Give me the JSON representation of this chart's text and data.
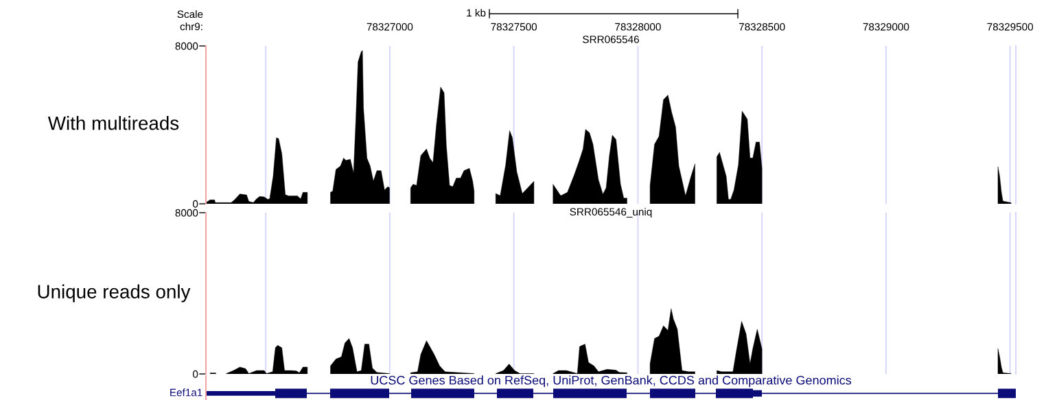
{
  "chart_data": [
    {
      "type": "area",
      "title": "SRR065546",
      "ylabel": "With multireads",
      "annotations": [
        "Scale",
        "chr9:",
        "1 kb"
      ],
      "xlim": [
        78326259,
        78329523
      ],
      "xticks": [
        {
          "value": 78326500,
          "label": null
        },
        78327000,
        78327500,
        78328000,
        78328500,
        78329000,
        78329500
      ],
      "ylim": [
        0,
        8000
      ],
      "yticks": [
        0,
        8000
      ],
      "grid": "x",
      "series": [
        {
          "color": "#000000",
          "x": [
            78326259,
            78326276,
            78326294,
            78326297,
            78326361,
            78326374,
            78326396,
            78326423,
            78326432,
            78326450,
            78326463,
            78326476,
            78326494,
            78326508,
            78326516,
            78326530,
            78326543,
            78326552,
            78326565,
            78326579,
            78326592,
            78326628,
            78326641,
            78326650,
            78326668,
            78326714,
            78326761,
            78326770,
            78326783,
            78326801,
            78326814,
            78326823,
            78326841,
            78326854,
            78326863,
            78326872,
            78326885,
            78326890,
            78326894,
            78326908,
            78326921,
            78326934,
            78326948,
            78326965,
            78326979,
            78326992,
            78326999,
            78327040,
            78327084,
            78327094,
            78327108,
            78327125,
            78327148,
            78327161,
            78327174,
            78327188,
            78327205,
            78327219,
            78327228,
            78327241,
            78327254,
            78327268,
            78327285,
            78327299,
            78327321,
            78327334,
            78327340,
            78327380,
            78327427,
            78327445,
            78327467,
            78327483,
            78327494,
            78327512,
            78327534,
            78327556,
            78327581,
            78327620,
            78327658,
            78327689,
            78327716,
            78327743,
            78327761,
            78327779,
            78327789,
            78327805,
            78327819,
            78327841,
            78327859,
            78327872,
            78327885,
            78327897,
            78327912,
            78327930,
            78327943,
            78327956,
            78328000,
            78328049,
            78328067,
            78328085,
            78328103,
            78328121,
            78328136,
            78328152,
            78328165,
            78328192,
            78328214,
            78328230,
            78328270,
            78328318,
            78328329,
            78328356,
            78328365,
            78328374,
            78328387,
            78328405,
            78328420,
            78328441,
            78328452,
            78328463,
            78328476,
            78328490,
            78328500,
            78329000,
            78329451,
            78329458,
            78329465,
            78329471,
            78329504
          ],
          "values": [
            60,
            200,
            200,
            60,
            60,
            200,
            500,
            450,
            120,
            60,
            250,
            370,
            350,
            230,
            250,
            1400,
            3350,
            3300,
            2550,
            460,
            400,
            400,
            250,
            580,
            580,
            null,
            580,
            640,
            1740,
            1910,
            2320,
            2200,
            2260,
            1570,
            4180,
            7190,
            7710,
            7770,
            4870,
            2320,
            1910,
            1160,
            1680,
            1680,
            700,
            870,
            810,
            null,
            810,
            990,
            930,
            2440,
            2780,
            2320,
            2090,
            4000,
            5920,
            5630,
            2960,
            930,
            870,
            1300,
            1300,
            1680,
            1800,
            1160,
            640,
            null,
            520,
            410,
            1970,
            3710,
            3360,
            1620,
            520,
            810,
            1140,
            null,
            990,
            410,
            580,
            1450,
            2090,
            2780,
            3770,
            3600,
            3020,
            1220,
            490,
            810,
            2440,
            3480,
            3250,
            990,
            290,
            290,
            null,
            930,
            3020,
            3420,
            5280,
            5510,
            4640,
            3890,
            1910,
            410,
            1390,
            2030,
            null,
            2380,
            2610,
            1390,
            230,
            230,
            700,
            1970,
            4700,
            4290,
            2320,
            2320,
            3130,
            3130,
            1800,
            null,
            1880,
            1400,
            590,
            140,
            50
          ]
        }
      ]
    },
    {
      "type": "area",
      "title": "SRR065546_uniq",
      "ylabel": "Unique reads only",
      "xlim": [
        78326259,
        78329523
      ],
      "xticks": [
        78326500,
        78327000,
        78327500,
        78328000,
        78328500,
        78329000,
        78329500
      ],
      "ylim": [
        0,
        8000
      ],
      "yticks": [
        0,
        8000
      ],
      "grid": "x",
      "tick_labels": "y",
      "series": [
        {
          "color": "#000000",
          "x": [
            78326276,
            78326299,
            78326320,
            78326341,
            78326370,
            78326396,
            78326419,
            78326432,
            78326463,
            78326494,
            78326503,
            78326528,
            78326539,
            78326548,
            78326565,
            78326576,
            78326601,
            78326623,
            78326636,
            78326650,
            78326668,
            78326714,
            78326761,
            78326783,
            78326805,
            78326819,
            78326836,
            78326850,
            78326868,
            78326885,
            78326899,
            78326916,
            78326930,
            78326948,
            78326999,
            78327040,
            78327084,
            78327112,
            78327125,
            78327148,
            78327179,
            78327201,
            78327223,
            78327340,
            78327380,
            78327427,
            78327458,
            78327481,
            78327503,
            78327525,
            78327581,
            78327620,
            78327658,
            78327680,
            78327712,
            78327756,
            78327765,
            78327787,
            78327801,
            78327823,
            78327841,
            78327876,
            78327912,
            78327925,
            78327956,
            78328000,
            78328049,
            78328067,
            78328085,
            78328103,
            78328121,
            78328134,
            78328143,
            78328159,
            78328178,
            78328205,
            78328230,
            78328270,
            78328318,
            78328338,
            78328383,
            78328396,
            78328418,
            78328436,
            78328452,
            78328463,
            78328481,
            78328500,
            78329000,
            78329451,
            78329458,
            78329465,
            78329471,
            78329504
          ],
          "values": [
            50,
            50,
            null,
            20,
            170,
            340,
            260,
            20,
            170,
            170,
            20,
            110,
            1300,
            1420,
            1300,
            170,
            170,
            150,
            60,
            340,
            340,
            null,
            400,
            740,
            850,
            1530,
            1760,
            1300,
            110,
            170,
            1480,
            1480,
            290,
            80,
            20,
            null,
            60,
            110,
            970,
            1650,
            970,
            400,
            110,
            20,
            null,
            20,
            170,
            490,
            170,
            20,
            20,
            null,
            20,
            170,
            170,
            20,
            1360,
            1480,
            570,
            400,
            110,
            230,
            190,
            80,
            60,
            null,
            510,
            1760,
            1870,
            2390,
            2160,
            3240,
            2730,
            2220,
            170,
            110,
            110,
            null,
            170,
            110,
            110,
            1080,
            2610,
            1990,
            510,
            1250,
            2220,
            1250,
            null,
            1260,
            850,
            340,
            60,
            20
          ]
        }
      ]
    },
    {
      "type": "other",
      "annotations": [
        "Eef1a1",
        "UCSC Genes Based on RefSeq, UniProt, GenBank, CCDS and Comparative Genomics"
      ]
    }
  ]
}
